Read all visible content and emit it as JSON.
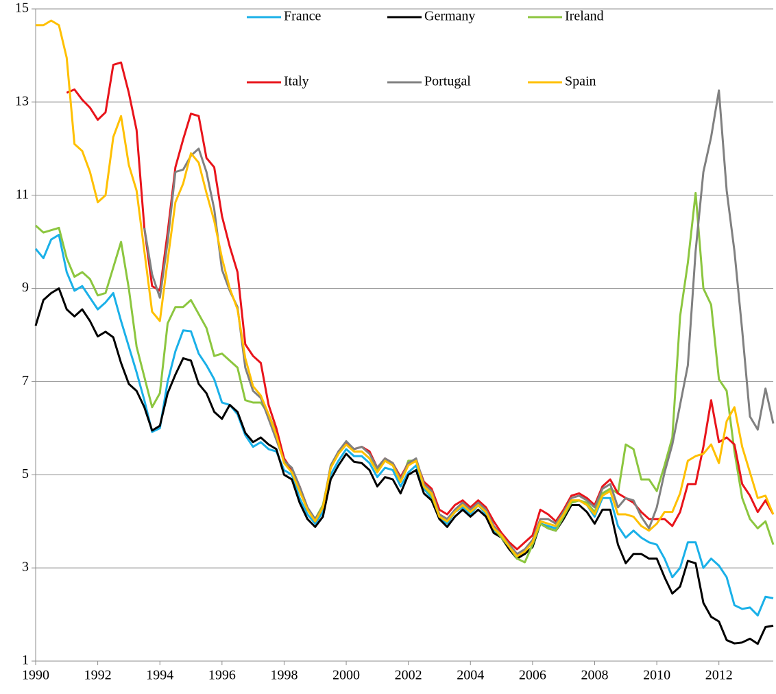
{
  "chart_data": {
    "type": "line",
    "x": [
      1990,
      1990.25,
      1990.5,
      1990.75,
      1991,
      1991.25,
      1991.5,
      1991.75,
      1992,
      1992.25,
      1992.5,
      1992.75,
      1993,
      1993.25,
      1993.5,
      1993.75,
      1994,
      1994.25,
      1994.5,
      1994.75,
      1995,
      1995.25,
      1995.5,
      1995.75,
      1996,
      1996.25,
      1996.5,
      1996.75,
      1997,
      1997.25,
      1997.5,
      1997.75,
      1998,
      1998.25,
      1998.5,
      1998.75,
      1999,
      1999.25,
      1999.5,
      1999.75,
      2000,
      2000.25,
      2000.5,
      2000.75,
      2001,
      2001.25,
      2001.5,
      2001.75,
      2002,
      2002.25,
      2002.5,
      2002.75,
      2003,
      2003.25,
      2003.5,
      2003.75,
      2004,
      2004.25,
      2004.5,
      2004.75,
      2005,
      2005.25,
      2005.5,
      2005.75,
      2006,
      2006.25,
      2006.5,
      2006.75,
      2007,
      2007.25,
      2007.5,
      2007.75,
      2008,
      2008.25,
      2008.5,
      2008.75,
      2009,
      2009.25,
      2009.5,
      2009.75,
      2010,
      2010.25,
      2010.5,
      2010.75,
      2011,
      2011.25,
      2011.5,
      2011.75,
      2012,
      2012.25,
      2012.5,
      2012.75,
      2013,
      2013.25,
      2013.5,
      2013.75
    ],
    "series": [
      {
        "name": "France",
        "color": "#1ab0e8",
        "values": [
          9.85,
          9.65,
          10.05,
          10.15,
          9.35,
          8.95,
          9.05,
          8.8,
          8.55,
          8.7,
          8.9,
          8.3,
          7.75,
          7.2,
          6.6,
          5.92,
          6.0,
          7.0,
          7.65,
          8.1,
          8.08,
          7.6,
          7.35,
          7.05,
          6.55,
          6.5,
          6.3,
          5.85,
          5.6,
          5.7,
          5.55,
          5.5,
          5.1,
          5.0,
          4.5,
          4.15,
          3.95,
          4.2,
          5.0,
          5.3,
          5.55,
          5.4,
          5.4,
          5.25,
          4.95,
          5.15,
          5.1,
          4.75,
          5.05,
          5.2,
          4.7,
          4.5,
          4.05,
          3.95,
          4.2,
          4.3,
          4.15,
          4.35,
          4.15,
          3.8,
          3.7,
          3.45,
          3.25,
          3.3,
          3.45,
          3.95,
          3.9,
          3.85,
          4.15,
          4.4,
          4.45,
          4.35,
          4.1,
          4.5,
          4.5,
          3.9,
          3.65,
          3.8,
          3.65,
          3.55,
          3.5,
          3.2,
          2.8,
          3.0,
          3.55,
          3.55,
          3.0,
          3.2,
          3.05,
          2.8,
          2.2,
          2.12,
          2.15,
          1.98,
          2.38,
          2.35
        ]
      },
      {
        "name": "Germany",
        "color": "#000000",
        "values": [
          8.2,
          8.75,
          8.9,
          9.0,
          8.55,
          8.4,
          8.55,
          8.3,
          7.97,
          8.07,
          7.95,
          7.4,
          6.95,
          6.8,
          6.45,
          5.95,
          6.05,
          6.75,
          7.15,
          7.5,
          7.45,
          6.95,
          6.75,
          6.35,
          6.2,
          6.5,
          6.35,
          5.9,
          5.7,
          5.8,
          5.65,
          5.55,
          5.0,
          4.9,
          4.4,
          4.05,
          3.88,
          4.1,
          4.9,
          5.2,
          5.45,
          5.28,
          5.25,
          5.1,
          4.75,
          4.95,
          4.9,
          4.6,
          5.0,
          5.1,
          4.6,
          4.45,
          4.05,
          3.88,
          4.1,
          4.25,
          4.1,
          4.25,
          4.1,
          3.75,
          3.65,
          3.4,
          3.2,
          3.3,
          3.45,
          3.95,
          3.85,
          3.8,
          4.05,
          4.35,
          4.35,
          4.2,
          3.95,
          4.25,
          4.25,
          3.5,
          3.1,
          3.3,
          3.3,
          3.2,
          3.2,
          2.8,
          2.45,
          2.6,
          3.15,
          3.1,
          2.25,
          1.95,
          1.85,
          1.45,
          1.38,
          1.4,
          1.48,
          1.37,
          1.73,
          1.76
        ]
      },
      {
        "name": "Ireland",
        "color": "#8cc63f",
        "values": [
          10.35,
          10.2,
          10.25,
          10.3,
          9.65,
          9.25,
          9.35,
          9.2,
          8.85,
          8.9,
          9.45,
          10.0,
          9.0,
          7.75,
          7.1,
          6.45,
          6.75,
          8.25,
          8.6,
          8.6,
          8.75,
          8.45,
          8.15,
          7.55,
          7.6,
          7.45,
          7.3,
          6.6,
          6.55,
          6.55,
          6.3,
          5.9,
          5.3,
          5.1,
          4.7,
          4.25,
          4.05,
          4.35,
          5.15,
          5.45,
          5.65,
          5.5,
          5.5,
          5.35,
          5.1,
          5.3,
          5.2,
          4.85,
          5.3,
          5.3,
          4.75,
          4.55,
          4.1,
          4.0,
          4.25,
          4.35,
          4.2,
          4.35,
          4.2,
          3.85,
          3.65,
          3.45,
          3.2,
          3.12,
          3.5,
          3.95,
          3.85,
          3.8,
          4.1,
          4.4,
          4.45,
          4.4,
          4.2,
          4.6,
          4.7,
          4.6,
          5.65,
          5.55,
          4.9,
          4.9,
          4.65,
          5.2,
          5.8,
          8.4,
          9.55,
          11.05,
          9.0,
          8.65,
          7.05,
          6.8,
          5.5,
          4.5,
          4.05,
          3.85,
          4.0,
          3.5
        ]
      },
      {
        "name": "Italy",
        "color": "#e8141b",
        "values": [
          null,
          null,
          null,
          null,
          13.2,
          13.27,
          13.05,
          12.88,
          12.62,
          12.78,
          13.8,
          13.85,
          13.2,
          12.4,
          10.3,
          9.05,
          8.95,
          10.2,
          11.6,
          12.2,
          12.75,
          12.7,
          11.8,
          11.6,
          10.55,
          9.9,
          9.35,
          7.8,
          7.55,
          7.4,
          6.5,
          6.0,
          5.35,
          5.1,
          4.75,
          4.3,
          4.0,
          4.3,
          5.15,
          5.5,
          5.7,
          5.55,
          5.6,
          5.5,
          5.15,
          5.35,
          5.25,
          4.95,
          5.25,
          5.3,
          4.85,
          4.7,
          4.25,
          4.15,
          4.35,
          4.45,
          4.3,
          4.45,
          4.3,
          4.0,
          3.75,
          3.55,
          3.4,
          3.55,
          3.7,
          4.25,
          4.15,
          4.0,
          4.25,
          4.55,
          4.6,
          4.5,
          4.35,
          4.75,
          4.9,
          4.6,
          4.5,
          4.4,
          4.2,
          4.05,
          4.05,
          4.05,
          3.9,
          4.2,
          4.8,
          4.8,
          5.6,
          6.6,
          5.7,
          5.8,
          5.65,
          4.8,
          4.55,
          4.2,
          4.45,
          4.15
        ]
      },
      {
        "name": "Portugal",
        "color": "#808080",
        "values": [
          null,
          null,
          null,
          null,
          null,
          null,
          null,
          null,
          null,
          null,
          null,
          null,
          null,
          null,
          10.3,
          9.3,
          8.8,
          10.0,
          11.5,
          11.55,
          11.85,
          12.0,
          11.5,
          10.7,
          9.4,
          8.95,
          8.6,
          7.3,
          6.8,
          6.65,
          6.2,
          5.75,
          5.3,
          5.15,
          4.75,
          4.3,
          4.05,
          4.3,
          5.2,
          5.5,
          5.72,
          5.55,
          5.6,
          5.45,
          5.15,
          5.35,
          5.25,
          4.9,
          5.25,
          5.35,
          4.8,
          4.65,
          4.15,
          4.05,
          4.25,
          4.4,
          4.25,
          4.4,
          4.25,
          3.9,
          3.7,
          3.5,
          3.3,
          3.4,
          3.6,
          4.05,
          4.05,
          3.95,
          4.2,
          4.5,
          4.55,
          4.45,
          4.3,
          4.7,
          4.8,
          4.3,
          4.5,
          4.45,
          4.1,
          3.85,
          4.3,
          5.05,
          5.65,
          6.5,
          7.35,
          9.8,
          11.5,
          12.25,
          13.25,
          11.1,
          9.8,
          8.1,
          6.25,
          5.97,
          6.85,
          6.1
        ]
      },
      {
        "name": "Spain",
        "color": "#ffc000",
        "values": [
          14.65,
          14.65,
          14.75,
          14.65,
          13.95,
          12.1,
          11.95,
          11.5,
          10.85,
          11.0,
          12.25,
          12.7,
          11.65,
          11.1,
          9.8,
          8.5,
          8.3,
          9.6,
          10.85,
          11.25,
          11.9,
          11.7,
          11.05,
          10.45,
          9.65,
          9.0,
          8.55,
          7.5,
          6.9,
          6.7,
          6.3,
          5.85,
          5.25,
          5.05,
          4.65,
          4.25,
          4.0,
          4.3,
          5.15,
          5.45,
          5.65,
          5.5,
          5.5,
          5.35,
          5.05,
          5.3,
          5.2,
          4.85,
          5.2,
          5.3,
          4.75,
          4.6,
          4.1,
          4.0,
          4.2,
          4.35,
          4.2,
          4.35,
          4.2,
          3.85,
          3.7,
          3.45,
          3.25,
          3.35,
          3.55,
          4.0,
          3.95,
          3.9,
          4.15,
          4.45,
          4.45,
          4.35,
          4.15,
          4.55,
          4.65,
          4.15,
          4.15,
          4.1,
          3.9,
          3.8,
          3.95,
          4.2,
          4.2,
          4.6,
          5.3,
          5.4,
          5.45,
          5.65,
          5.25,
          6.15,
          6.45,
          5.6,
          5.05,
          4.5,
          4.55,
          4.15
        ]
      }
    ],
    "xlim": [
      1990,
      2013.75
    ],
    "xticks": [
      1990,
      1992,
      1994,
      1996,
      1998,
      2000,
      2002,
      2004,
      2006,
      2008,
      2010,
      2012
    ],
    "ylim": [
      1,
      15
    ],
    "yticks": [
      1,
      3,
      5,
      7,
      9,
      11,
      13,
      15
    ],
    "grid": true,
    "legend": "top"
  }
}
